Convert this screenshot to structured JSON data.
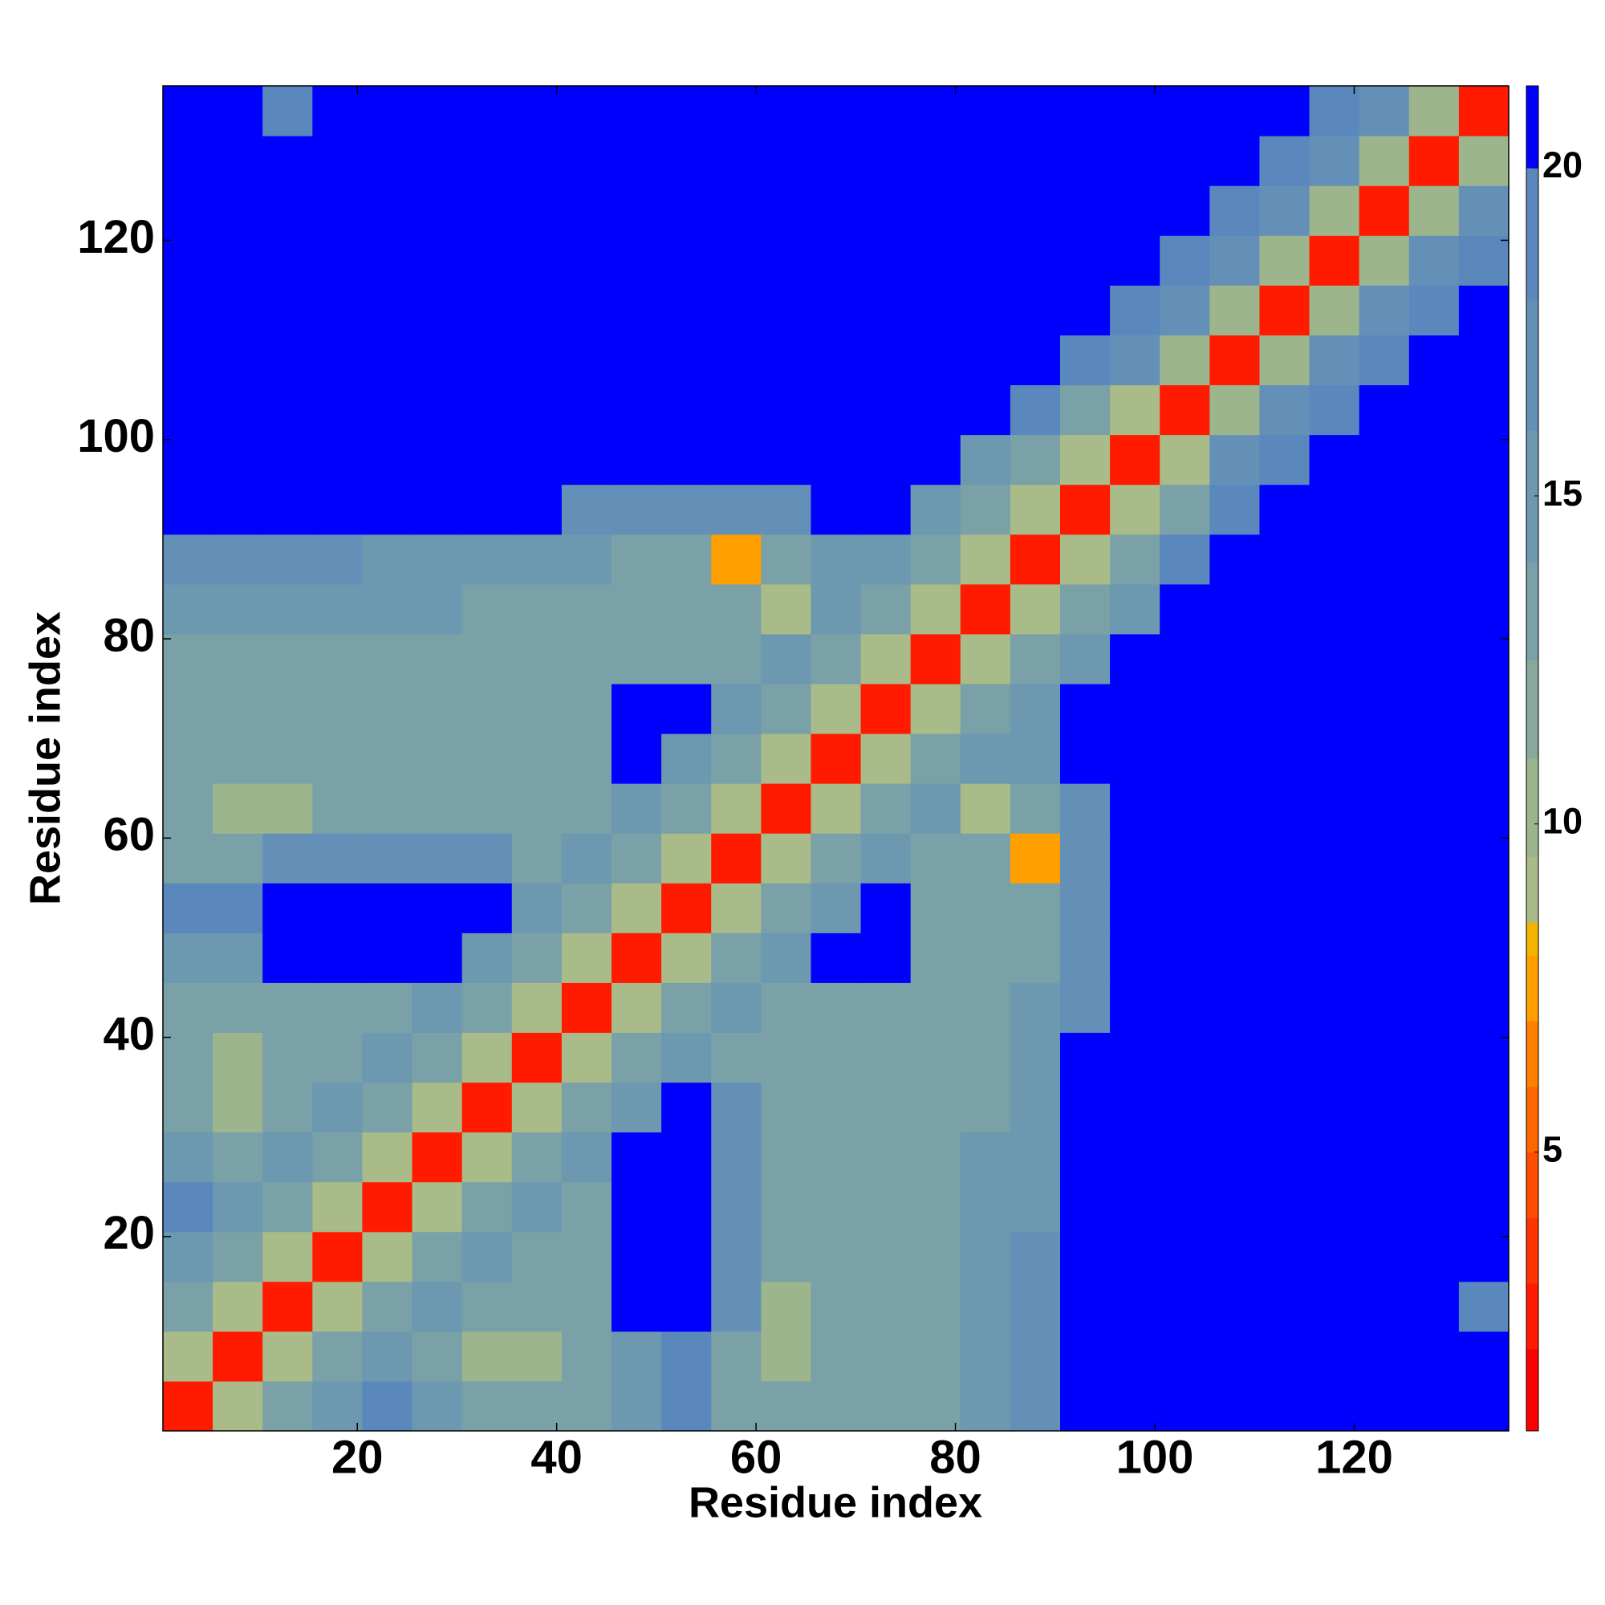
{
  "chart_data": {
    "type": "heatmap",
    "xlabel": "Residue index",
    "ylabel": "Residue index",
    "xlim": [
      0.5,
      135.5
    ],
    "ylim": [
      0.5,
      135.5
    ],
    "xticks": [
      20,
      40,
      60,
      80,
      100,
      120
    ],
    "yticks": [
      20,
      40,
      60,
      80,
      100,
      120
    ],
    "xbins": [
      0.5,
      5.5,
      10.5,
      15.5,
      20.5,
      25.5,
      30.5,
      35.5,
      40.5,
      45.5,
      50.5,
      55.5,
      60.5,
      65.5,
      70.5,
      75.5,
      80.5,
      85.5,
      90.5,
      95.5,
      100.5,
      105.5,
      110.5,
      115.5,
      120.5,
      125.5,
      130.5,
      135.5
    ],
    "ybins": [
      0.5,
      5.5,
      10.5,
      15.5,
      20.5,
      25.5,
      30.5,
      35.5,
      40.5,
      45.5,
      50.5,
      55.5,
      60.5,
      65.5,
      70.5,
      75.5,
      80.5,
      85.5,
      90.5,
      95.5,
      100.5,
      105.5,
      110.5,
      115.5,
      120.5,
      125.5,
      130.5,
      135.5
    ],
    "clim": [
      0.75,
      21.25
    ],
    "cticks": [
      5,
      10,
      15,
      20
    ],
    "colorscale": [
      {
        "max": 2,
        "color": "#ff0000"
      },
      {
        "max": 3,
        "color": "#ff1a00"
      },
      {
        "max": 4,
        "color": "#ff3300"
      },
      {
        "max": 5,
        "color": "#ff4d00"
      },
      {
        "max": 6,
        "color": "#ff6600"
      },
      {
        "max": 7,
        "color": "#ff8000"
      },
      {
        "max": 8,
        "color": "#ffa000"
      },
      {
        "max": 8.5,
        "color": "#f2b400"
      },
      {
        "max": 9.5,
        "color": "#a8bb88"
      },
      {
        "max": 11,
        "color": "#9cb58c"
      },
      {
        "max": 12.5,
        "color": "#88a89c"
      },
      {
        "max": 14,
        "color": "#7aa0a8"
      },
      {
        "max": 16,
        "color": "#6c98b0"
      },
      {
        "max": 18,
        "color": "#6490b8"
      },
      {
        "max": 20,
        "color": "#5a88bc"
      },
      {
        "max": 21.25,
        "color": "#0000ff"
      }
    ],
    "z": [
      [
        3,
        9,
        14,
        16,
        19,
        15,
        13,
        13,
        13,
        16,
        19,
        13,
        13,
        13,
        13,
        13,
        16,
        18,
        21,
        21,
        21,
        21,
        21,
        21,
        21,
        21,
        21
      ],
      [
        9,
        3,
        9,
        14,
        16,
        14,
        11,
        11,
        13,
        16,
        19,
        13,
        11,
        13,
        13,
        13,
        16,
        18,
        21,
        21,
        21,
        21,
        21,
        21,
        21,
        21,
        21
      ],
      [
        14,
        9,
        3,
        9,
        14,
        16,
        13,
        13,
        13,
        21,
        21,
        17,
        11,
        13,
        13,
        13,
        16,
        18,
        21,
        21,
        21,
        21,
        21,
        21,
        21,
        21,
        19
      ],
      [
        16,
        14,
        9,
        3,
        9,
        14,
        16,
        13,
        13,
        21,
        21,
        17,
        13,
        13,
        13,
        13,
        16,
        18,
        21,
        21,
        21,
        21,
        21,
        21,
        21,
        21,
        21
      ],
      [
        19,
        16,
        14,
        9,
        3,
        9,
        14,
        16,
        13,
        21,
        21,
        17,
        13,
        13,
        13,
        13,
        16,
        16,
        21,
        21,
        21,
        21,
        21,
        21,
        21,
        21,
        21
      ],
      [
        15,
        14,
        16,
        14,
        9,
        3,
        9,
        14,
        16,
        21,
        21,
        17,
        13,
        13,
        13,
        13,
        16,
        16,
        21,
        21,
        21,
        21,
        21,
        21,
        21,
        21,
        21
      ],
      [
        13,
        11,
        13,
        16,
        14,
        9,
        3,
        9,
        14,
        16,
        21,
        18,
        13,
        13,
        13,
        13,
        13,
        16,
        21,
        21,
        21,
        21,
        21,
        21,
        21,
        21,
        21
      ],
      [
        13,
        11,
        13,
        13,
        16,
        14,
        9,
        3,
        9,
        14,
        16,
        13,
        13,
        13,
        13,
        13,
        13,
        16,
        21,
        21,
        21,
        21,
        21,
        21,
        21,
        21,
        21
      ],
      [
        13,
        13,
        13,
        13,
        13,
        16,
        14,
        9,
        3,
        9,
        14,
        16,
        13,
        13,
        13,
        13,
        13,
        16,
        18,
        21,
        21,
        21,
        21,
        21,
        21,
        21,
        21
      ],
      [
        16,
        16,
        21,
        21,
        21,
        21,
        16,
        14,
        9,
        3,
        9,
        14,
        16,
        21,
        21,
        13,
        13,
        13,
        18,
        21,
        21,
        21,
        21,
        21,
        21,
        21,
        21
      ],
      [
        19,
        19,
        21,
        21,
        21,
        21,
        21,
        16,
        14,
        9,
        3,
        9,
        14,
        16,
        21,
        13,
        13,
        13,
        18,
        21,
        21,
        21,
        21,
        21,
        21,
        21,
        21
      ],
      [
        13,
        13,
        17,
        17,
        17,
        17,
        18,
        13,
        16,
        14,
        9,
        3,
        9,
        14,
        16,
        13,
        13,
        8,
        18,
        21,
        21,
        21,
        21,
        21,
        21,
        21,
        21
      ],
      [
        13,
        11,
        11,
        13,
        13,
        13,
        13,
        13,
        13,
        16,
        14,
        9,
        3,
        9,
        14,
        16,
        9,
        13,
        18,
        21,
        21,
        21,
        21,
        21,
        21,
        21,
        21
      ],
      [
        13,
        13,
        13,
        13,
        13,
        13,
        13,
        13,
        13,
        21,
        16,
        14,
        9,
        3,
        9,
        14,
        16,
        15,
        21,
        21,
        21,
        21,
        21,
        21,
        21,
        21,
        21
      ],
      [
        13,
        13,
        13,
        13,
        13,
        13,
        13,
        13,
        13,
        21,
        21,
        16,
        14,
        9,
        3,
        9,
        14,
        16,
        21,
        21,
        21,
        21,
        21,
        21,
        21,
        21,
        21
      ],
      [
        13,
        13,
        13,
        13,
        13,
        13,
        13,
        13,
        13,
        13,
        13,
        13,
        16,
        14,
        9,
        3,
        9,
        14,
        16,
        21,
        21,
        21,
        21,
        21,
        21,
        21,
        21
      ],
      [
        16,
        16,
        16,
        16,
        16,
        16,
        13,
        13,
        13,
        13,
        13,
        13,
        9,
        16,
        14,
        9,
        3,
        9,
        14,
        16,
        21,
        21,
        21,
        21,
        21,
        21,
        21
      ],
      [
        18,
        18,
        18,
        18,
        16,
        16,
        16,
        16,
        16,
        13,
        13,
        8,
        13,
        15,
        16,
        14,
        9,
        3,
        9,
        14,
        20,
        21,
        21,
        21,
        21,
        21,
        21
      ],
      [
        21,
        21,
        21,
        21,
        21,
        21,
        21,
        21,
        18,
        18,
        18,
        18,
        18,
        21,
        21,
        16,
        14,
        9,
        3,
        9,
        14,
        20,
        21,
        21,
        21,
        21,
        21
      ],
      [
        21,
        21,
        21,
        21,
        21,
        21,
        21,
        21,
        21,
        21,
        21,
        21,
        21,
        21,
        21,
        21,
        16,
        14,
        9,
        3,
        9,
        17,
        20,
        21,
        21,
        21,
        21
      ],
      [
        21,
        21,
        21,
        21,
        21,
        21,
        21,
        21,
        21,
        21,
        21,
        21,
        21,
        21,
        21,
        21,
        21,
        20,
        14,
        9,
        3,
        10,
        17,
        20,
        21,
        21,
        21
      ],
      [
        21,
        21,
        21,
        21,
        21,
        21,
        21,
        21,
        21,
        21,
        21,
        21,
        21,
        21,
        21,
        21,
        21,
        21,
        20,
        17,
        10,
        3,
        10,
        17,
        20,
        21,
        21
      ],
      [
        21,
        21,
        21,
        21,
        21,
        21,
        21,
        21,
        21,
        21,
        21,
        21,
        21,
        21,
        21,
        21,
        21,
        21,
        21,
        20,
        17,
        10,
        3,
        10,
        17,
        20,
        21
      ],
      [
        21,
        21,
        21,
        21,
        21,
        21,
        21,
        21,
        21,
        21,
        21,
        21,
        21,
        21,
        21,
        21,
        21,
        21,
        21,
        21,
        20,
        17,
        10,
        3,
        10,
        17,
        20
      ],
      [
        21,
        21,
        21,
        21,
        21,
        21,
        21,
        21,
        21,
        21,
        21,
        21,
        21,
        21,
        21,
        21,
        21,
        21,
        21,
        21,
        21,
        20,
        17,
        10,
        3,
        10,
        17
      ],
      [
        21,
        21,
        21,
        21,
        21,
        21,
        21,
        21,
        21,
        21,
        21,
        21,
        21,
        21,
        21,
        21,
        21,
        21,
        21,
        21,
        21,
        21,
        20,
        17,
        10,
        3,
        10
      ],
      [
        21,
        21,
        19,
        21,
        21,
        21,
        21,
        21,
        21,
        21,
        21,
        21,
        21,
        21,
        21,
        21,
        21,
        21,
        21,
        21,
        21,
        21,
        21,
        20,
        17,
        10,
        3
      ]
    ]
  }
}
